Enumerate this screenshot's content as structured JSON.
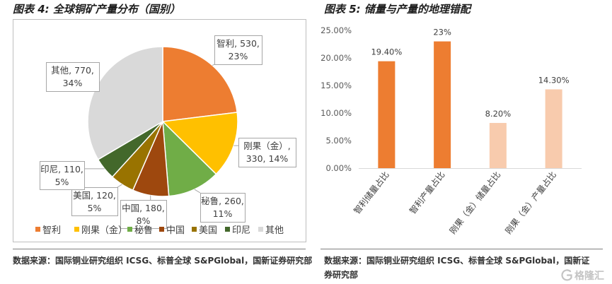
{
  "chart_data": [
    {
      "type": "pie",
      "title": "图表 4: 全球铜矿产量分布（国别）",
      "slices": [
        {
          "name": "智利",
          "value": 530,
          "percent": "23%",
          "color": "#ED7D31"
        },
        {
          "name": "刚果（金）",
          "value": 330,
          "percent": "14%",
          "color": "#FFC000"
        },
        {
          "name": "秘鲁",
          "value": 260,
          "percent": "11%",
          "color": "#70AD47"
        },
        {
          "name": "中国",
          "value": 180,
          "percent": "8%",
          "color": "#9E480E"
        },
        {
          "name": "美国",
          "value": 120,
          "percent": "5%",
          "color": "#997300"
        },
        {
          "name": "印尼",
          "value": 110,
          "percent": "5%",
          "color": "#43682B"
        },
        {
          "name": "其他",
          "value": 770,
          "percent": "34%",
          "color": "#D9D9D9"
        }
      ],
      "legend": "bottom"
    },
    {
      "type": "bar",
      "title": "图表 5: 储量与产量的地理错配",
      "categories": [
        "智利储量占比",
        "智利产量占比",
        "刚果（金）储量占比",
        "刚果（金）产量占比"
      ],
      "values": [
        19.4,
        23,
        8.2,
        14.3
      ],
      "value_labels": [
        "19.40%",
        "23%",
        "8.20%",
        "14.30%"
      ],
      "colors": [
        "#ED7D31",
        "#ED7D31",
        "#F8CBAD",
        "#F8CBAD"
      ],
      "ylim": [
        0,
        25
      ],
      "yticks": [
        0,
        5,
        10,
        15,
        20,
        25
      ],
      "ytick_labels": [
        "0.00%",
        "5.00%",
        "10.00%",
        "15.00%",
        "20.00%",
        "25.00%"
      ],
      "grid": false
    }
  ],
  "sources": [
    "数据来源：国际铜业研究组织 ICSG、标普全球 S&PGlobal，国新证券研究部",
    "数据来源：国际铜业研究组织 ICSG、标普全球 S&PGlobal，国新证券研究部"
  ],
  "watermark": "格隆汇"
}
